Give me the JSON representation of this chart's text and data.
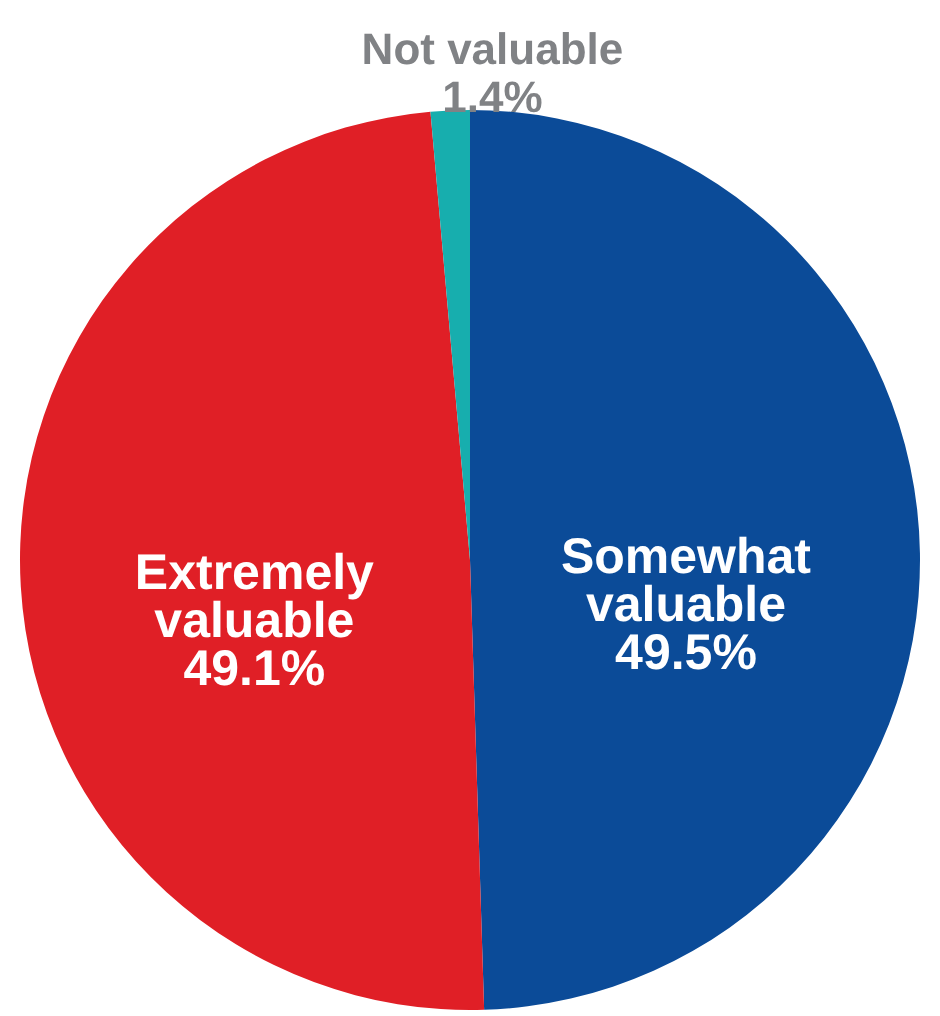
{
  "chart_data": {
    "type": "pie",
    "categories": [
      "Somewhat valuable",
      "Extremely valuable",
      "Not valuable"
    ],
    "values": [
      49.5,
      49.1,
      1.4
    ],
    "value_labels": [
      "49.5%",
      "49.1%",
      "1.4%"
    ],
    "colors": [
      "#0b4b98",
      "#e01f26",
      "#17aeae"
    ]
  }
}
